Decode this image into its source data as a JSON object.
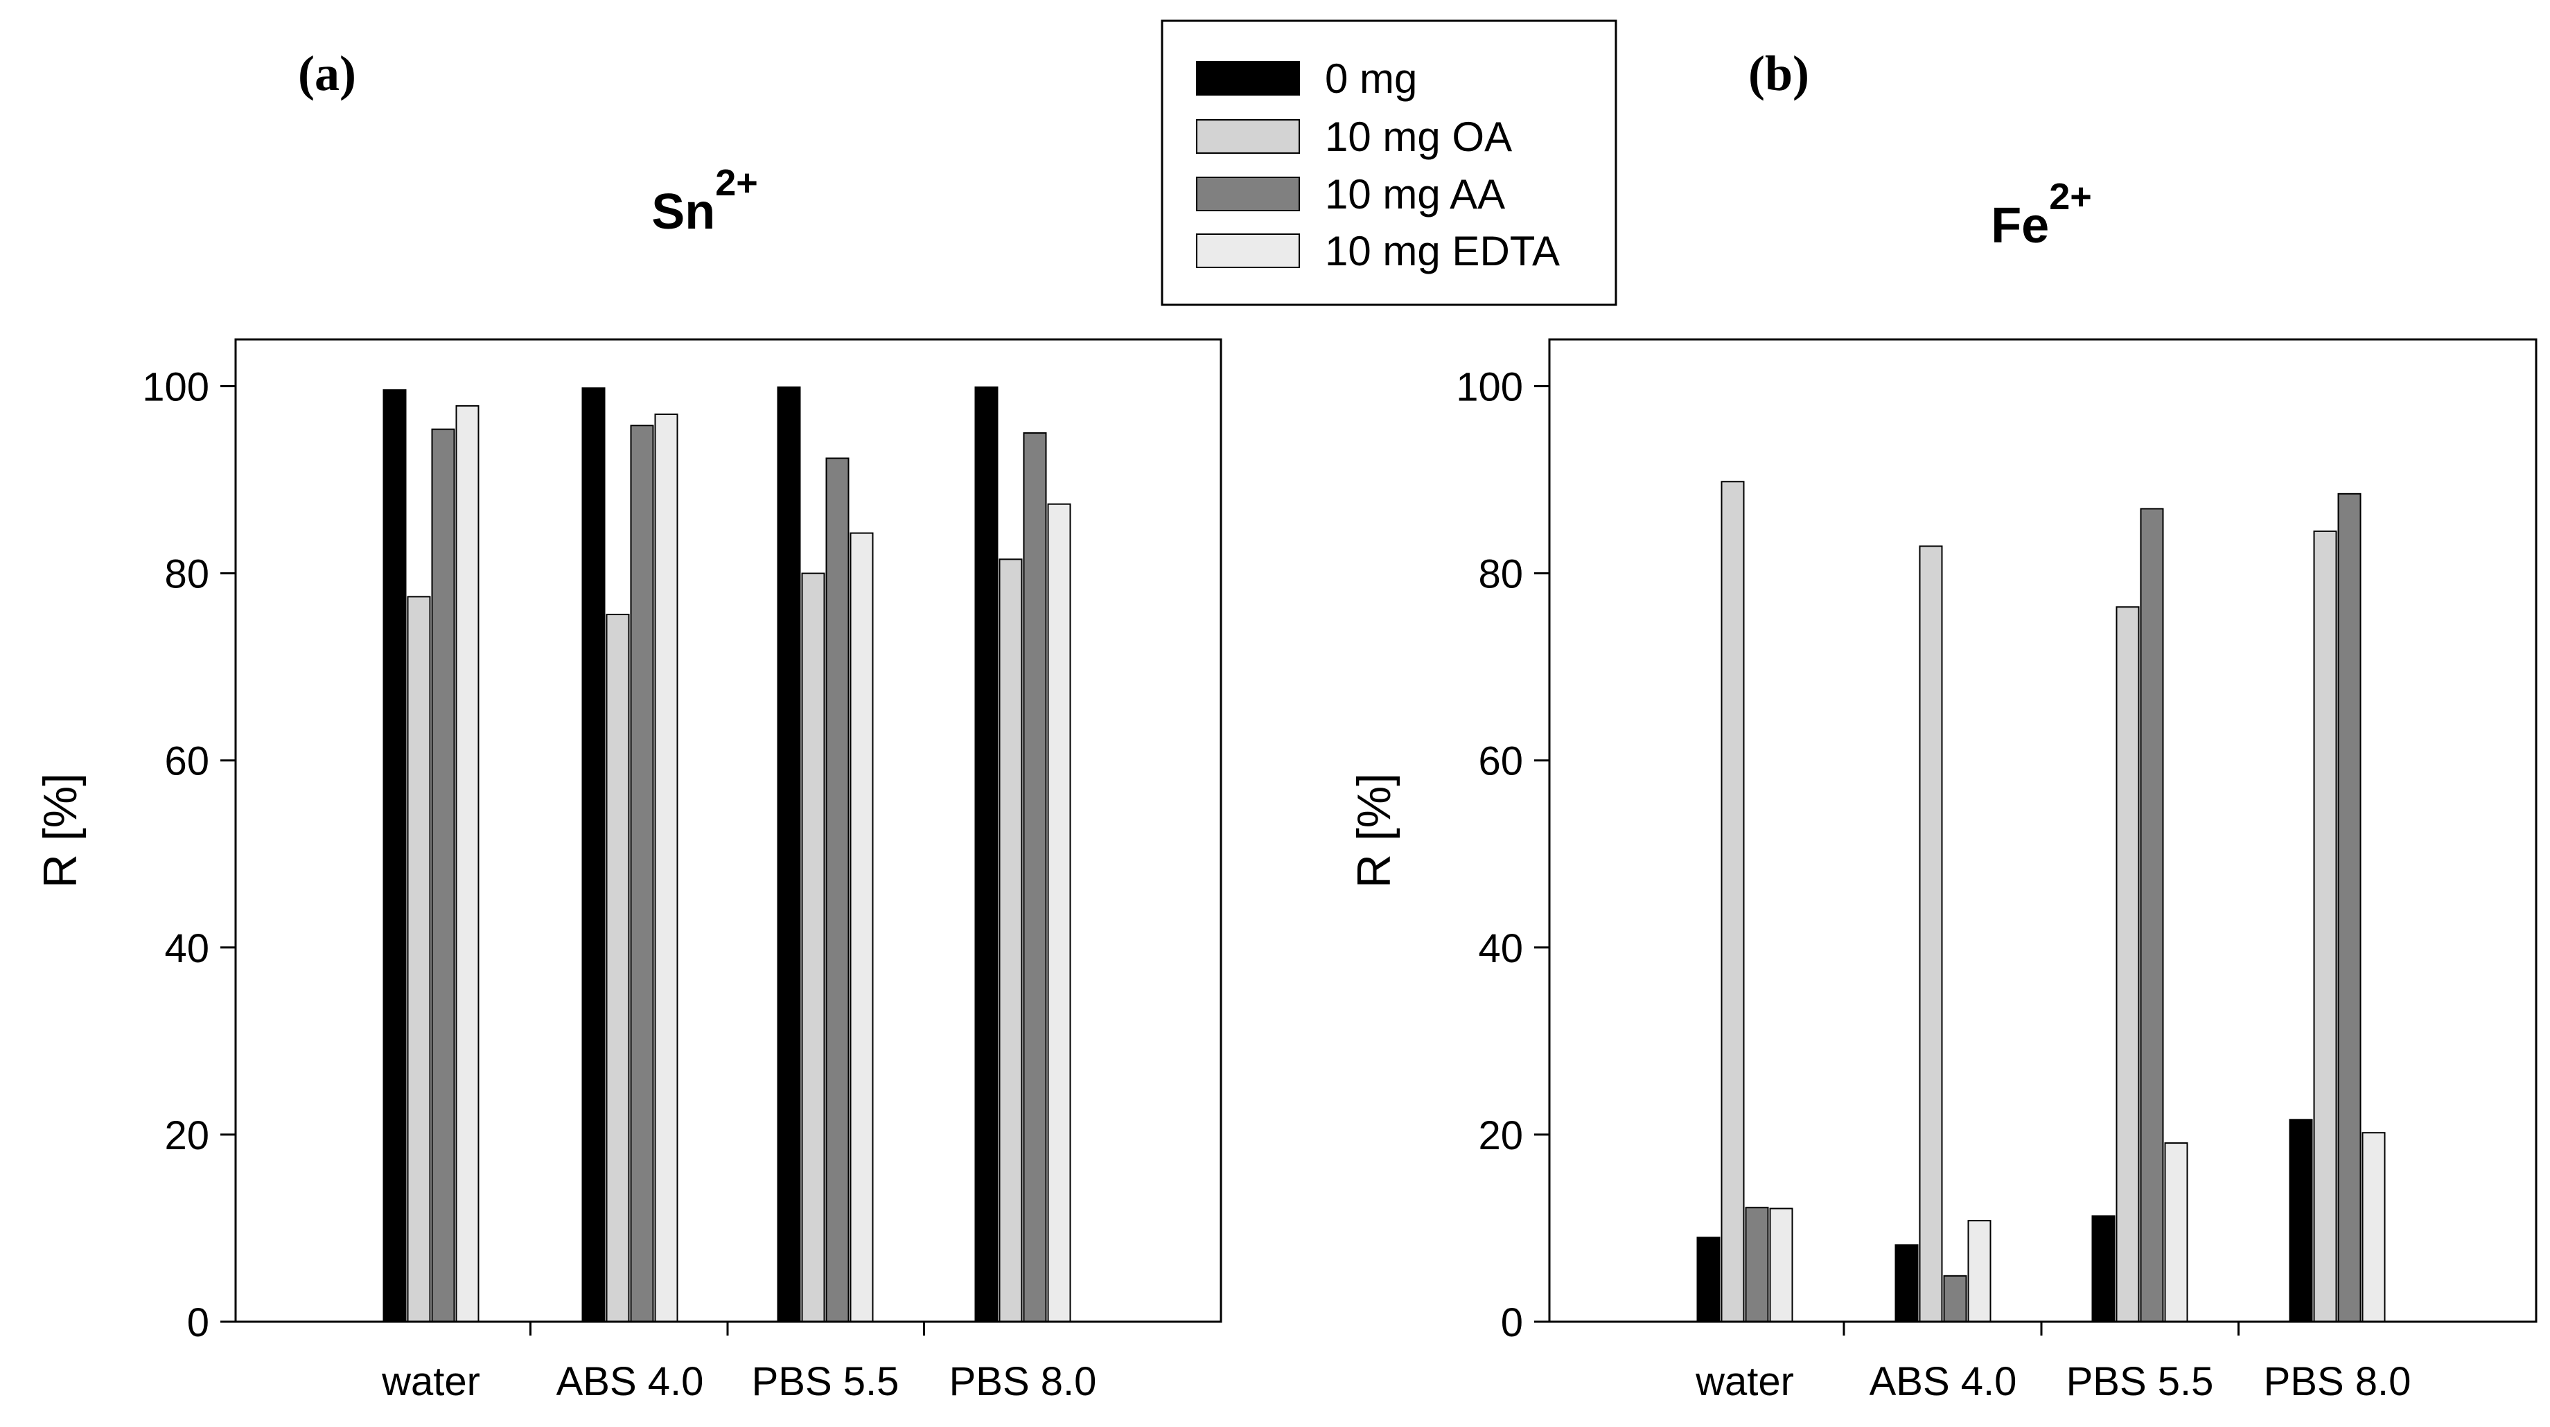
{
  "legend": {
    "entries": [
      {
        "label": "0 mg",
        "color": "#000000"
      },
      {
        "label": "10 mg OA",
        "color": "#d3d3d3"
      },
      {
        "label": "10 mg AA",
        "color": "#808080"
      },
      {
        "label": "10 mg EDTA",
        "color": "#ebebeb"
      }
    ]
  },
  "chart_data": [
    {
      "type": "bar",
      "panel": "(a)",
      "title": "Sn",
      "title_sup": "2+",
      "ylabel": "R [%]",
      "xlabel": "",
      "ylim": [
        0,
        105
      ],
      "yticks": [
        0,
        20,
        40,
        60,
        80,
        100
      ],
      "categories": [
        "water",
        "ABS 4.0",
        "PBS 5.5",
        "PBS 8.0"
      ],
      "series": [
        {
          "name": "0 mg",
          "color": "#000000",
          "values": [
            99.6,
            99.8,
            99.9,
            99.9
          ]
        },
        {
          "name": "10 mg OA",
          "color": "#d3d3d3",
          "values": [
            77.5,
            75.6,
            80.0,
            81.5
          ]
        },
        {
          "name": "10 mg AA",
          "color": "#808080",
          "values": [
            95.4,
            95.8,
            92.3,
            95.0
          ]
        },
        {
          "name": "10 mg EDTA",
          "color": "#ebebeb",
          "values": [
            97.9,
            97.0,
            84.3,
            87.4
          ]
        }
      ],
      "grid": false
    },
    {
      "type": "bar",
      "panel": "(b)",
      "title": "Fe",
      "title_sup": "2+",
      "ylabel": "R [%]",
      "xlabel": "",
      "ylim": [
        0,
        105
      ],
      "yticks": [
        0,
        20,
        40,
        60,
        80,
        100
      ],
      "categories": [
        "water",
        "ABS 4.0",
        "PBS 5.5",
        "PBS 8.0"
      ],
      "series": [
        {
          "name": "0 mg",
          "color": "#000000",
          "values": [
            9.0,
            8.2,
            11.3,
            21.6
          ]
        },
        {
          "name": "10 mg OA",
          "color": "#d3d3d3",
          "values": [
            89.8,
            82.9,
            76.4,
            84.5
          ]
        },
        {
          "name": "10 mg AA",
          "color": "#808080",
          "values": [
            12.2,
            4.9,
            86.9,
            88.5
          ]
        },
        {
          "name": "10 mg EDTA",
          "color": "#ebebeb",
          "values": [
            12.1,
            10.8,
            19.1,
            20.2
          ]
        }
      ],
      "grid": false
    }
  ]
}
